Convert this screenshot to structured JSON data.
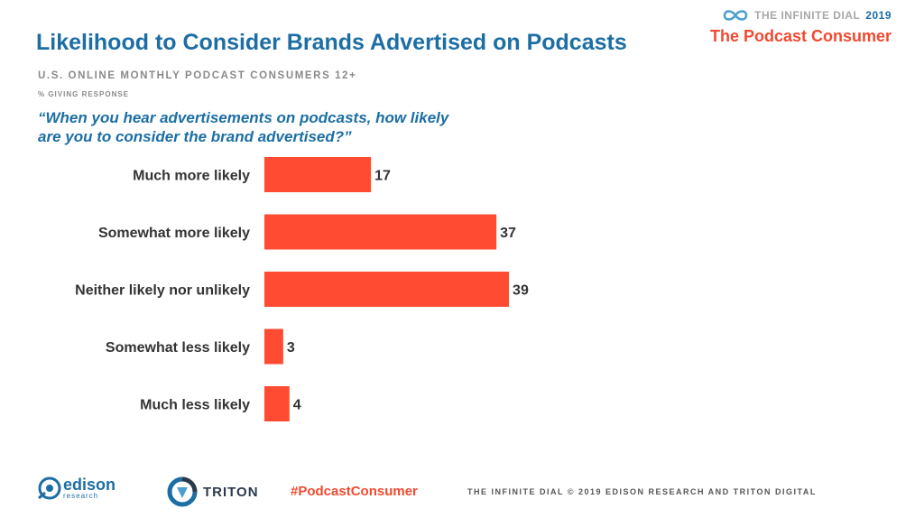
{
  "header": {
    "title": "Likelihood to Consider Brands Advertised on Podcasts",
    "subtitle": "U.S. ONLINE MONTHLY PODCAST CONSUMERS 12+",
    "note": "% GIVING RESPONSE",
    "question": "“When you hear advertisements on podcasts, how likely are you to consider the brand advertised?”"
  },
  "brand": {
    "dial_prefix": "THE INFINITE DIAL",
    "dial_year": "2019",
    "consumer": "The Podcast Consumer"
  },
  "chart_data": {
    "type": "bar",
    "orientation": "horizontal",
    "categories": [
      "Much more likely",
      "Somewhat more likely",
      "Neither likely nor unlikely",
      "Somewhat less likely",
      "Much less likely"
    ],
    "values": [
      17,
      37,
      39,
      3,
      4
    ],
    "data_labels": [
      "17",
      "37",
      "39",
      "3",
      "4"
    ],
    "title": "",
    "xlabel": "",
    "ylabel": "",
    "xlim": [
      0,
      40
    ],
    "grid": false,
    "bar_color": "#ff4b31"
  },
  "footer": {
    "edison_name": "edison",
    "edison_sub": "research",
    "triton_name": "TRITON",
    "hashtag": "#PodcastConsumer",
    "credit": "THE INFINITE DIAL  © 2019 EDISON RESEARCH AND TRITON DIGITAL"
  },
  "colors": {
    "title": "#1c6ea4",
    "accent": "#f04a30",
    "bar": "#ff4b31"
  }
}
